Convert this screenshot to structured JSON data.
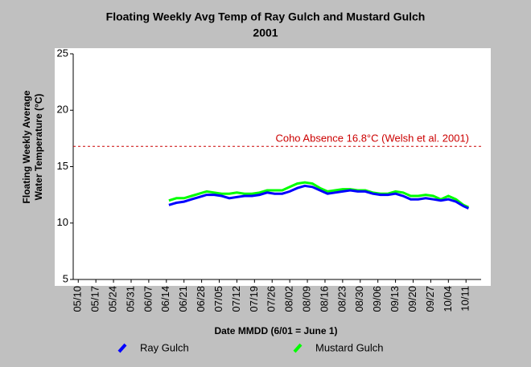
{
  "chart_data": {
    "type": "line",
    "title": "Floating Weekly Avg Temp of Ray Gulch and Mustard Gulch",
    "subtitle": "2001",
    "ylabel": [
      "Floating Weekly Average",
      "Water Temperature (°C)"
    ],
    "xlabel": "Date MMDD (6/01 = June 1)",
    "x": [
      "06/15",
      "06/18",
      "06/21",
      "06/24",
      "06/27",
      "06/30",
      "07/03",
      "07/06",
      "07/09",
      "07/12",
      "07/15",
      "07/18",
      "07/21",
      "07/24",
      "07/27",
      "07/30",
      "08/02",
      "08/05",
      "08/08",
      "08/11",
      "08/14",
      "08/17",
      "08/20",
      "08/23",
      "08/26",
      "08/29",
      "09/01",
      "09/04",
      "09/07",
      "09/10",
      "09/13",
      "09/16",
      "09/19",
      "09/22",
      "09/25",
      "09/28",
      "10/01",
      "10/04",
      "10/07",
      "10/10",
      "10/12"
    ],
    "series": [
      {
        "name": "Ray Gulch",
        "color": "#0000ff",
        "values": [
          11.6,
          11.8,
          11.9,
          12.1,
          12.3,
          12.5,
          12.5,
          12.4,
          12.2,
          12.3,
          12.4,
          12.4,
          12.5,
          12.7,
          12.6,
          12.6,
          12.8,
          13.1,
          13.3,
          13.2,
          12.9,
          12.6,
          12.7,
          12.8,
          12.9,
          12.8,
          12.8,
          12.6,
          12.5,
          12.5,
          12.6,
          12.4,
          12.1,
          12.1,
          12.2,
          12.1,
          12.0,
          12.1,
          11.9,
          11.5,
          11.3
        ]
      },
      {
        "name": "Mustard Gulch",
        "color": "#00ff00",
        "values": [
          12.0,
          12.2,
          12.2,
          12.4,
          12.6,
          12.8,
          12.7,
          12.6,
          12.6,
          12.7,
          12.6,
          12.6,
          12.7,
          12.9,
          12.9,
          12.9,
          13.2,
          13.5,
          13.6,
          13.5,
          13.1,
          12.8,
          12.9,
          13.0,
          13.0,
          12.9,
          12.9,
          12.7,
          12.6,
          12.6,
          12.8,
          12.7,
          12.4,
          12.4,
          12.5,
          12.4,
          12.1,
          12.4,
          12.1,
          11.6,
          11.4
        ]
      }
    ],
    "xlim": [
      "05/08",
      "10/17"
    ],
    "xticks": [
      "05/10",
      "05/17",
      "05/24",
      "05/31",
      "06/07",
      "06/14",
      "06/21",
      "06/28",
      "07/05",
      "07/12",
      "07/19",
      "07/26",
      "08/02",
      "08/09",
      "08/16",
      "08/23",
      "08/30",
      "09/06",
      "09/13",
      "09/20",
      "09/27",
      "10/04",
      "10/11"
    ],
    "ylim": [
      5,
      25
    ],
    "yticks": [
      5,
      10,
      15,
      20,
      25
    ],
    "reference_line": {
      "label": "Coho Absence 16.8°C (Welsh et al. 2001)",
      "value": 16.8,
      "color": "#cc0000"
    }
  }
}
